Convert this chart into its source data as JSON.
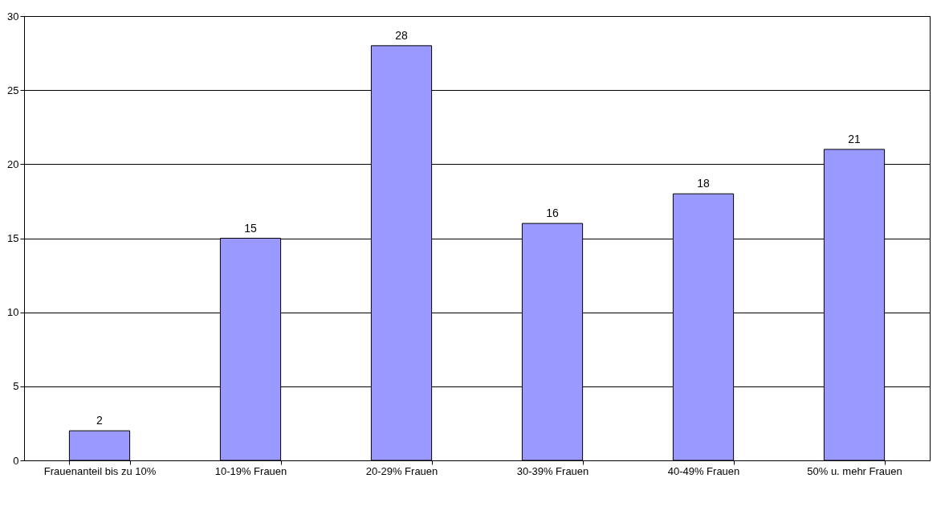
{
  "chart_data": {
    "type": "bar",
    "categories": [
      "Frauenanteil bis zu 10%",
      "10-19% Frauen",
      "20-29% Frauen",
      "30-39% Frauen",
      "40-49% Frauen",
      "50% u. mehr Frauen"
    ],
    "values": [
      2,
      15,
      28,
      16,
      18,
      21
    ],
    "color": "#9999ff",
    "ylim": [
      0,
      30
    ],
    "yticks": [
      0,
      5,
      10,
      15,
      20,
      25,
      30
    ],
    "grid": "y",
    "data_labels": true
  }
}
